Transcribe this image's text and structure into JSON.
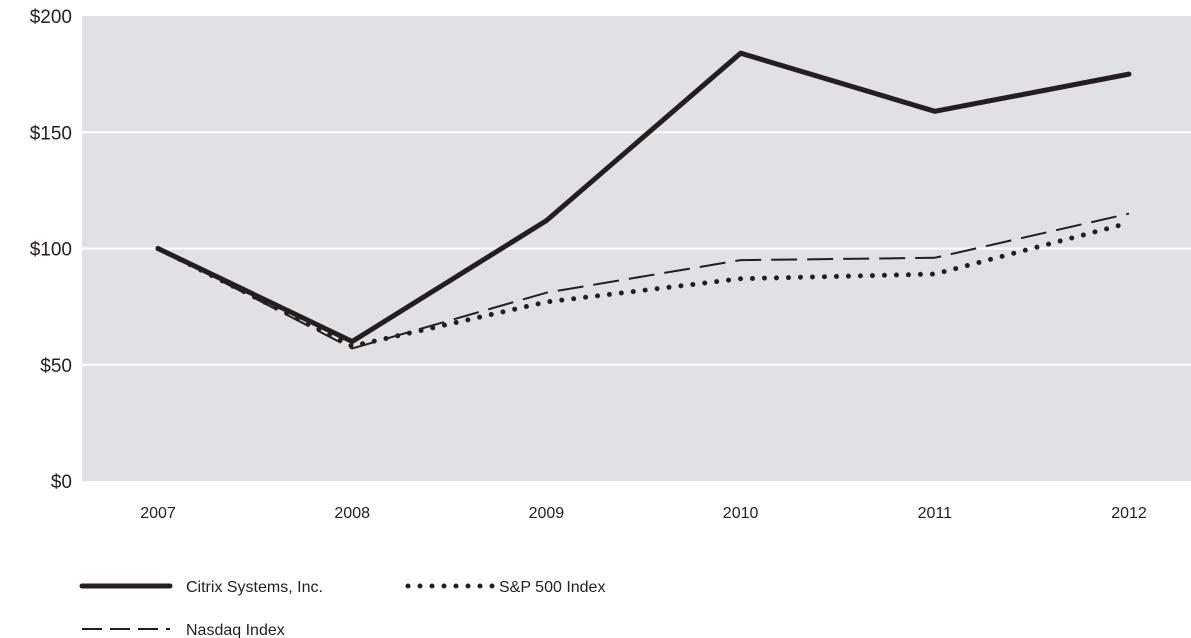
{
  "chart_data": {
    "type": "line",
    "title": "",
    "xlabel": "",
    "ylabel": "",
    "categories": [
      "2007",
      "2008",
      "2009",
      "2010",
      "2011",
      "2012"
    ],
    "ylim": [
      0,
      200
    ],
    "yticks": [
      0,
      50,
      100,
      150,
      200
    ],
    "ytick_labels": [
      "$0",
      "$50",
      "$100",
      "$150",
      "$200"
    ],
    "grid": "horizontal",
    "background": "#e1e1e3",
    "gridline_color": "#ffffff",
    "series": [
      {
        "name": "Citrix Systems, Inc.",
        "style": "solid",
        "color": "#231f20",
        "values": [
          100,
          60,
          112,
          184,
          159,
          175
        ]
      },
      {
        "name": "S&P 500 Index",
        "style": "dotted",
        "color": "#231f20",
        "values": [
          100,
          58,
          77,
          87,
          89,
          111
        ]
      },
      {
        "name": "Nasdaq Index",
        "style": "dashed",
        "color": "#231f20",
        "values": [
          100,
          57,
          81,
          95,
          96,
          115
        ]
      }
    ],
    "legend_position": "bottom-left"
  }
}
